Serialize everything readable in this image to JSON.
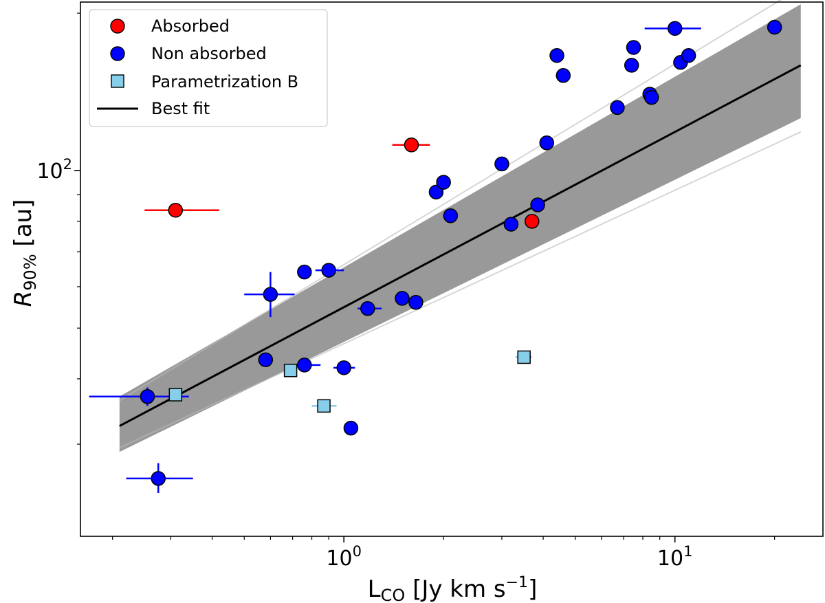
{
  "chart_data": {
    "type": "scatter",
    "xlabel": "L",
    "xlabel_sub": "CO",
    "xlabel_rest": " [Jy km s",
    "xlabel_sup": "−1",
    "xlabel_end": "]",
    "ylabel": "R",
    "ylabel_sub": "90%",
    "ylabel_rest": " [au]",
    "x_scale": "log",
    "y_scale": "log",
    "xlim": [
      0.16,
      28
    ],
    "ylim": [
      20,
      210
    ],
    "x_major_ticks": [
      {
        "value": 1,
        "base": "10",
        "exp": "0"
      },
      {
        "value": 10,
        "base": "10",
        "exp": "1"
      }
    ],
    "y_major_ticks": [
      {
        "value": 100,
        "base": "10",
        "exp": "2"
      }
    ],
    "x_minor_ticks": [
      0.2,
      0.3,
      0.4,
      0.5,
      0.6,
      0.7,
      0.8,
      0.9,
      2,
      3,
      4,
      5,
      6,
      7,
      8,
      9,
      20
    ],
    "y_minor_ticks": [
      30,
      40,
      50,
      60,
      70,
      80,
      90,
      200
    ],
    "legend_position": "top-left",
    "legend": [
      {
        "label": "Absorbed",
        "marker": "circle",
        "color": "#ff0000"
      },
      {
        "label": "Non absorbed",
        "marker": "circle",
        "color": "#0000ff"
      },
      {
        "label": "Parametrization B",
        "marker": "square",
        "color": "#87ceeb"
      },
      {
        "label": "Best fit",
        "marker": "line",
        "color": "#000000"
      }
    ],
    "best_fit": {
      "x": [
        0.21,
        24
      ],
      "y": [
        32.5,
        159
      ]
    },
    "fit_band": {
      "x": [
        0.21,
        24
      ],
      "y_low": [
        29,
        126
      ],
      "y_high": [
        37,
        208
      ]
    },
    "series": [
      {
        "name": "Absorbed",
        "color": "#ff0000",
        "marker": "circle",
        "points": [
          {
            "x": 0.31,
            "y": 84,
            "xerr": [
              0.25,
              0.42
            ]
          },
          {
            "x": 1.6,
            "y": 112,
            "xerr": [
              1.4,
              1.82
            ]
          },
          {
            "x": 3.7,
            "y": 80
          }
        ]
      },
      {
        "name": "Non absorbed",
        "color": "#0000ff",
        "marker": "circle",
        "points": [
          {
            "x": 0.255,
            "y": 37,
            "xerr": [
              0.17,
              0.34
            ],
            "yerr": [
              35.5,
              38.5
            ]
          },
          {
            "x": 0.275,
            "y": 25.8,
            "xerr": [
              0.22,
              0.35
            ],
            "yerr": [
              24.2,
              27.6
            ]
          },
          {
            "x": 0.58,
            "y": 43.5
          },
          {
            "x": 0.6,
            "y": 58,
            "xerr": [
              0.5,
              0.71
            ],
            "yerr": [
              52.5,
              64
            ]
          },
          {
            "x": 0.76,
            "y": 64
          },
          {
            "x": 0.76,
            "y": 42.5,
            "xerr": [
              0.7,
              0.85
            ]
          },
          {
            "x": 0.9,
            "y": 64.5,
            "xerr": [
              0.82,
              1.0
            ]
          },
          {
            "x": 1.0,
            "y": 42,
            "xerr": [
              0.93,
              1.08
            ]
          },
          {
            "x": 1.05,
            "y": 32.2
          },
          {
            "x": 1.18,
            "y": 54.5,
            "xerr": [
              1.1,
              1.3
            ]
          },
          {
            "x": 1.5,
            "y": 57
          },
          {
            "x": 1.65,
            "y": 56
          },
          {
            "x": 1.9,
            "y": 91
          },
          {
            "x": 2.0,
            "y": 95
          },
          {
            "x": 2.1,
            "y": 82
          },
          {
            "x": 3.0,
            "y": 103
          },
          {
            "x": 3.2,
            "y": 79
          },
          {
            "x": 3.85,
            "y": 86
          },
          {
            "x": 4.1,
            "y": 113
          },
          {
            "x": 4.4,
            "y": 166
          },
          {
            "x": 4.6,
            "y": 152
          },
          {
            "x": 6.7,
            "y": 132
          },
          {
            "x": 7.4,
            "y": 159
          },
          {
            "x": 7.5,
            "y": 172
          },
          {
            "x": 8.4,
            "y": 140
          },
          {
            "x": 8.5,
            "y": 138
          },
          {
            "x": 10.0,
            "y": 187,
            "xerr": [
              8.1,
              12.0
            ]
          },
          {
            "x": 10.4,
            "y": 161
          },
          {
            "x": 11.0,
            "y": 166
          },
          {
            "x": 20.0,
            "y": 188
          }
        ]
      },
      {
        "name": "Parametrization B",
        "color": "#87ceeb",
        "marker": "square",
        "points": [
          {
            "x": 0.31,
            "y": 37.3
          },
          {
            "x": 0.69,
            "y": 41.5
          },
          {
            "x": 0.87,
            "y": 35.5,
            "xerr": [
              0.8,
              0.95
            ]
          },
          {
            "x": 3.5,
            "y": 44,
            "xerr": [
              3.3,
              3.7
            ]
          }
        ]
      }
    ]
  }
}
